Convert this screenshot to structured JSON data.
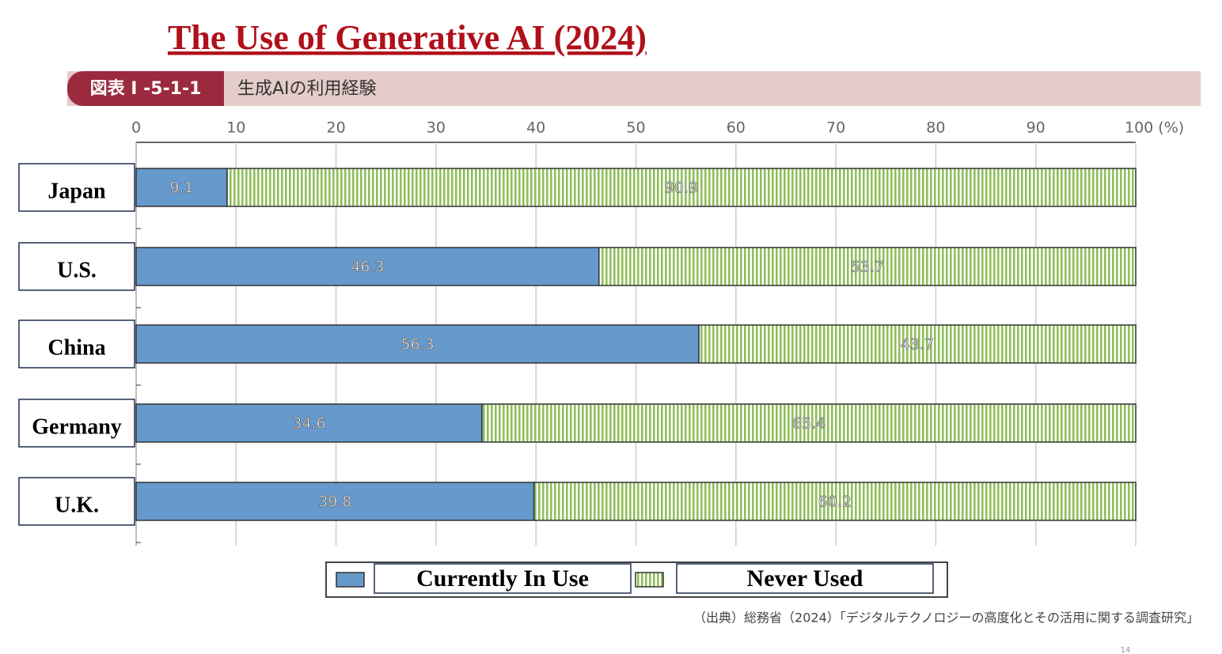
{
  "chart_data": {
    "type": "bar",
    "orientation": "horizontal",
    "stacked": true,
    "title": "The Use of Generative AI (2024)",
    "figure_label": "図表 I -5-1-1",
    "subtitle": "生成AIの利用経験",
    "categories": [
      "Japan",
      "U.S.",
      "China",
      "Germany",
      "U.K."
    ],
    "series": [
      {
        "name": "Currently In Use",
        "color": "#6699cc",
        "values": [
          9.1,
          46.3,
          56.3,
          34.6,
          39.8
        ]
      },
      {
        "name": "Never Used",
        "color": "#8fbf5a",
        "hatch": "vertical",
        "values": [
          90.9,
          53.7,
          43.7,
          65.4,
          60.2
        ]
      }
    ],
    "xlim": [
      0,
      100
    ],
    "xticks": [
      0,
      10,
      20,
      30,
      40,
      50,
      60,
      70,
      80,
      90,
      {
        "value": 100,
        "label": "100 (%)"
      }
    ],
    "grid": true,
    "legend": "bottom",
    "source": "（出典）総務省（2024）「デジタルテクノロジーの高度化とその活用に関する調査研究」",
    "page_number": "14"
  }
}
